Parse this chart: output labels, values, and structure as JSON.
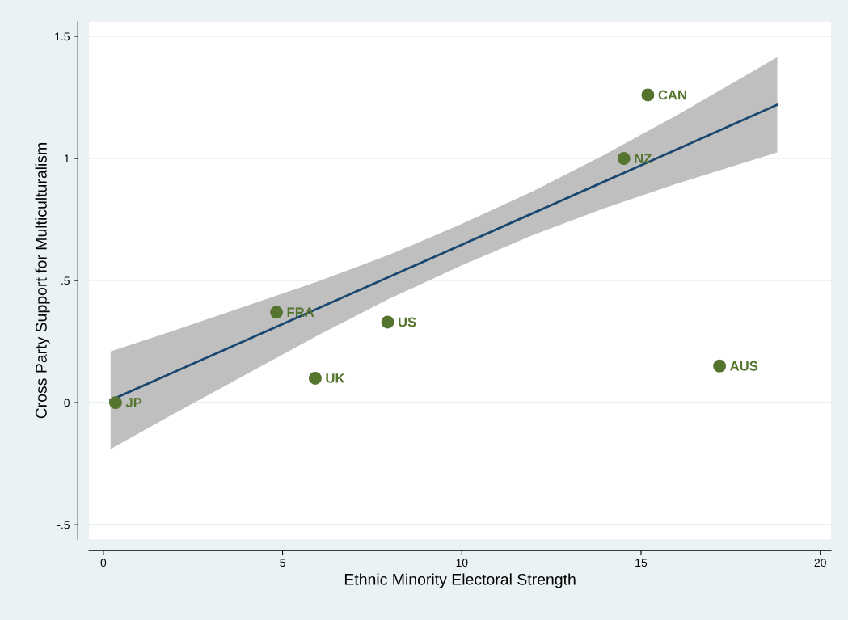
{
  "chart_data": {
    "type": "scatter",
    "xlabel": "Ethnic Minority Electoral Strength",
    "ylabel": "Cross Party Support for Multiculturalism",
    "xlim": [
      -0.4,
      20.3
    ],
    "ylim": [
      -0.56,
      1.56
    ],
    "xticks": [
      0,
      5,
      10,
      15,
      20
    ],
    "yticks": [
      {
        "value": -0.5,
        "label": "-.5"
      },
      0,
      {
        "value": 0.5,
        "label": ".5"
      },
      1,
      1.5
    ],
    "grid": "y",
    "legend": false,
    "marker": "circle",
    "series": [
      {
        "type": "line",
        "color": "#1a476f",
        "x": [
          0.2,
          2,
          4,
          6,
          8,
          10,
          12,
          14,
          16,
          18.8
        ],
        "values": [
          0.01,
          0.127,
          0.257,
          0.387,
          0.517,
          0.647,
          0.777,
          0.907,
          1.037,
          1.22
        ],
        "lower": [
          -0.19,
          -0.043,
          0.117,
          0.277,
          0.427,
          0.562,
          0.687,
          0.797,
          0.897,
          1.025
        ],
        "upper": [
          0.21,
          0.297,
          0.397,
          0.497,
          0.607,
          0.732,
          0.867,
          1.017,
          1.177,
          1.415
        ],
        "marker": "none"
      },
      {
        "color": "#55752f",
        "x": [
          0.34,
          4.83,
          5.91,
          7.93,
          14.52,
          15.19,
          17.19
        ],
        "values": [
          0.0,
          0.37,
          0.1,
          0.33,
          1.0,
          1.26,
          0.15
        ]
      }
    ],
    "annotations": [
      {
        "text": "JP",
        "x": 0.34,
        "y": 0.0
      },
      {
        "text": "FRA",
        "x": 4.83,
        "y": 0.37
      },
      {
        "text": "UK",
        "x": 5.91,
        "y": 0.1
      },
      {
        "text": "US",
        "x": 7.93,
        "y": 0.33
      },
      {
        "text": "NZ",
        "x": 14.52,
        "y": 1.0
      },
      {
        "text": "CAN",
        "x": 15.19,
        "y": 1.26
      },
      {
        "text": "AUS",
        "x": 17.19,
        "y": 0.15
      }
    ]
  }
}
